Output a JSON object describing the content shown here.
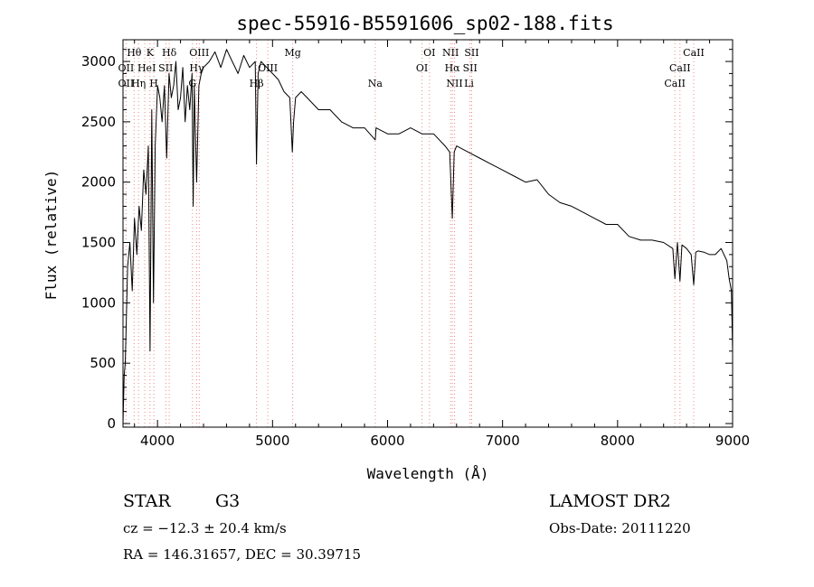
{
  "chart_data": {
    "type": "line",
    "title": "spec-55916-B5591606_sp02-188.fits",
    "xlabel": "Wavelength (Å)",
    "ylabel": "Flux (relative)",
    "xlim": [
      3700,
      9000
    ],
    "ylim": [
      -30,
      3180
    ],
    "x_ticks": [
      4000,
      5000,
      6000,
      7000,
      8000,
      9000
    ],
    "y_ticks": [
      0,
      500,
      1000,
      1500,
      2000,
      2500,
      3000
    ],
    "series": [
      {
        "name": "spectrum",
        "x": [
          3700,
          3710,
          3720,
          3740,
          3760,
          3780,
          3800,
          3820,
          3840,
          3860,
          3880,
          3900,
          3920,
          3935,
          3950,
          3965,
          3980,
          4000,
          4020,
          4040,
          4060,
          4080,
          4100,
          4120,
          4140,
          4160,
          4180,
          4200,
          4220,
          4240,
          4260,
          4280,
          4300,
          4310,
          4320,
          4340,
          4360,
          4380,
          4400,
          4450,
          4500,
          4550,
          4600,
          4650,
          4700,
          4750,
          4800,
          4850,
          4861,
          4875,
          4900,
          4950,
          5000,
          5050,
          5100,
          5150,
          5172,
          5183,
          5200,
          5250,
          5300,
          5400,
          5500,
          5600,
          5700,
          5800,
          5893,
          5900,
          6000,
          6100,
          6200,
          6300,
          6400,
          6500,
          6540,
          6563,
          6580,
          6600,
          6700,
          6800,
          6900,
          7000,
          7100,
          7200,
          7300,
          7400,
          7500,
          7600,
          7700,
          7800,
          7900,
          8000,
          8100,
          8200,
          8300,
          8400,
          8480,
          8498,
          8520,
          8542,
          8560,
          8600,
          8640,
          8662,
          8680,
          8700,
          8750,
          8800,
          8850,
          8900,
          8950,
          8970,
          8990,
          9000
        ],
        "y": [
          0,
          400,
          500,
          1300,
          1500,
          1100,
          1700,
          1400,
          1800,
          1600,
          2100,
          1900,
          2300,
          600,
          2600,
          1000,
          2300,
          2800,
          2700,
          2500,
          2800,
          2200,
          2900,
          2700,
          2800,
          3000,
          2600,
          2700,
          2950,
          2500,
          2800,
          2600,
          2900,
          1800,
          2800,
          2000,
          2800,
          2900,
          2950,
          3000,
          3080,
          2950,
          3100,
          3000,
          2900,
          3050,
          2950,
          3000,
          2150,
          2900,
          3000,
          2950,
          2900,
          2850,
          2750,
          2700,
          2250,
          2500,
          2700,
          2750,
          2700,
          2600,
          2600,
          2500,
          2450,
          2450,
          2350,
          2450,
          2400,
          2400,
          2450,
          2400,
          2400,
          2300,
          2250,
          1700,
          2250,
          2300,
          2250,
          2200,
          2150,
          2100,
          2050,
          2000,
          2020,
          1900,
          1830,
          1800,
          1750,
          1700,
          1650,
          1650,
          1550,
          1520,
          1520,
          1500,
          1450,
          1200,
          1500,
          1180,
          1480,
          1450,
          1400,
          1150,
          1420,
          1430,
          1420,
          1400,
          1400,
          1450,
          1350,
          1200,
          1100,
          600
        ]
      }
    ],
    "line_markers": [
      {
        "label": "Hθ",
        "wavelength": 3797,
        "row": 1
      },
      {
        "label": "K",
        "wavelength": 3934,
        "row": 1
      },
      {
        "label": "Hδ",
        "wavelength": 4102,
        "row": 1
      },
      {
        "label": "OIII",
        "wavelength": 4363,
        "row": 1
      },
      {
        "label": "Mg",
        "wavelength": 5175,
        "row": 1
      },
      {
        "label": "OI",
        "wavelength": 6364,
        "row": 1
      },
      {
        "label": "NII",
        "wavelength": 6548,
        "row": 1
      },
      {
        "label": "SII",
        "wavelength": 6731,
        "row": 1
      },
      {
        "label": "CaII",
        "wavelength": 8662,
        "row": 1
      },
      {
        "label": "OII",
        "wavelength": 3727,
        "row": 2
      },
      {
        "label": "He",
        "wavelength": 3889,
        "row": 2
      },
      {
        "label": "I",
        "wavelength": 3970,
        "row": 2
      },
      {
        "label": "SII",
        "wavelength": 4072,
        "row": 2
      },
      {
        "label": "Hγ",
        "wavelength": 4340,
        "row": 2
      },
      {
        "label": "OIII",
        "wavelength": 4959,
        "row": 2
      },
      {
        "label": "OI",
        "wavelength": 6300,
        "row": 2
      },
      {
        "label": "Hα",
        "wavelength": 6563,
        "row": 2
      },
      {
        "label": "SII",
        "wavelength": 6717,
        "row": 2
      },
      {
        "label": "CaII",
        "wavelength": 8542,
        "row": 2
      },
      {
        "label": "OII",
        "wavelength": 3727,
        "row": 3
      },
      {
        "label": "Hη",
        "wavelength": 3835,
        "row": 3
      },
      {
        "label": "H",
        "wavelength": 3968,
        "row": 3
      },
      {
        "label": "G",
        "wavelength": 4304,
        "row": 3
      },
      {
        "label": "Hβ",
        "wavelength": 4861,
        "row": 3
      },
      {
        "label": "Na",
        "wavelength": 5893,
        "row": 3
      },
      {
        "label": "NII",
        "wavelength": 6583,
        "row": 3
      },
      {
        "label": "Li",
        "wavelength": 6708,
        "row": 3
      },
      {
        "label": "CaII",
        "wavelength": 8498,
        "row": 3
      }
    ],
    "marker_lines": [
      3727,
      3797,
      3835,
      3889,
      3934,
      3968,
      4072,
      4102,
      4304,
      4340,
      4363,
      4861,
      4959,
      5175,
      5893,
      6300,
      6364,
      6548,
      6563,
      6583,
      6717,
      6731,
      8498,
      8542,
      8662
    ]
  },
  "info": {
    "object_class": "STAR",
    "subclass": "G3",
    "survey": "LAMOST DR2",
    "redshift_line": "cz = −12.3 ± 20.4 km/s",
    "obs_date_line": "Obs-Date: 20111220",
    "coords_line": "RA = 146.31657, DEC =  30.39715"
  }
}
